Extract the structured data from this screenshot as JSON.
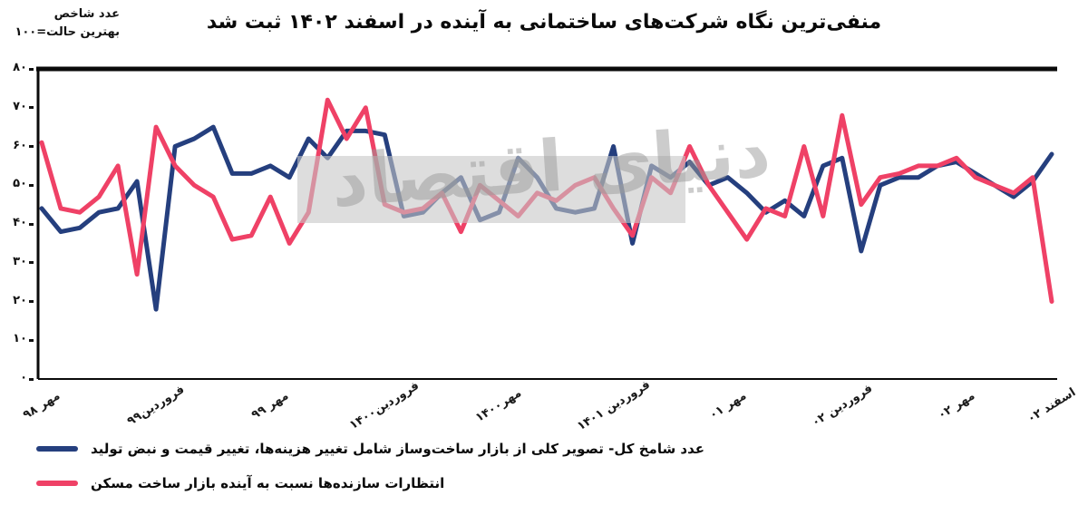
{
  "header": {
    "title": "منفی‌ترین نگاه شرکت‌های ساختمانی به آینده در اسفند ۱۴۰۲ ثبت شد",
    "axis_note_line1": "عدد شاخص",
    "axis_note_line2": "بهترین حالت=۱۰۰"
  },
  "watermark": {
    "text": "دنیای اقتصاد"
  },
  "colors": {
    "shamekh_total_line": "#253f7e",
    "expectations_line": "#ef4166",
    "axis_frame": "#0a0a0a",
    "watermark_gray": "#c6c6c6"
  },
  "chart_data": {
    "type": "line",
    "title": "منفی‌ترین نگاه شرکت‌های ساختمانی به آینده در اسفند ۱۴۰۲ ثبت شد",
    "ylabel": "عدد شاخص (بهترین حالت=۱۰۰)",
    "ylim": [
      0,
      80
    ],
    "grid": false,
    "legend_position": "bottom",
    "n_points": 54,
    "y_ticks": [
      {
        "value": 0,
        "label": "۰"
      },
      {
        "value": 10,
        "label": "۱۰"
      },
      {
        "value": 20,
        "label": "۲۰"
      },
      {
        "value": 30,
        "label": "۳۰"
      },
      {
        "value": 40,
        "label": "۴۰"
      },
      {
        "value": 50,
        "label": "۵۰"
      },
      {
        "value": 60,
        "label": "۶۰"
      },
      {
        "value": 70,
        "label": "۷۰"
      },
      {
        "value": 80,
        "label": "۸۰"
      }
    ],
    "x_tick_labels": [
      {
        "index": 0,
        "label": "مهر ۹۸"
      },
      {
        "index": 6,
        "label": "فروردین۹۹"
      },
      {
        "index": 12,
        "label": "مهر ۹۹"
      },
      {
        "index": 18,
        "label": "فروردین۱۴۰۰"
      },
      {
        "index": 24,
        "label": "مهر۱۴۰۰"
      },
      {
        "index": 30,
        "label": "فروردین ۱۴۰۱"
      },
      {
        "index": 36,
        "label": "مهر ۰۱"
      },
      {
        "index": 42,
        "label": "فروردین ۰۲"
      },
      {
        "index": 48,
        "label": "مهر ۰۲"
      },
      {
        "index": 53,
        "label": "اسفند ۰۲"
      }
    ],
    "series": [
      {
        "name": "عدد شامخ کل- تصویر کلی از بازار ساخت‌وساز شامل تغییر هزینه‌ها، تغییر قیمت و نبض تولید",
        "color": "#253f7e",
        "values": [
          44,
          38,
          39,
          43,
          44,
          51,
          18,
          60,
          62,
          65,
          53,
          53,
          55,
          52,
          62,
          57,
          64,
          64,
          63,
          42,
          43,
          48,
          52,
          41,
          43,
          57,
          52,
          44,
          43,
          44,
          60,
          35,
          55,
          52,
          56,
          50,
          52,
          48,
          43,
          46,
          42,
          55,
          57,
          33,
          50,
          52,
          52,
          55,
          56,
          53,
          50,
          47,
          51,
          58
        ]
      },
      {
        "name": "انتظارات سازنده‌ها نسبت به آینده بازار ساخت مسکن",
        "color": "#ef4166",
        "values": [
          61,
          44,
          43,
          47,
          55,
          27,
          65,
          55,
          50,
          47,
          36,
          37,
          47,
          35,
          43,
          72,
          62,
          70,
          45,
          43,
          44,
          48,
          38,
          50,
          46,
          42,
          48,
          46,
          50,
          52,
          44,
          37,
          52,
          48,
          60,
          50,
          43,
          36,
          44,
          42,
          60,
          42,
          68,
          45,
          52,
          53,
          55,
          55,
          57,
          52,
          50,
          48,
          52,
          20
        ]
      }
    ]
  }
}
